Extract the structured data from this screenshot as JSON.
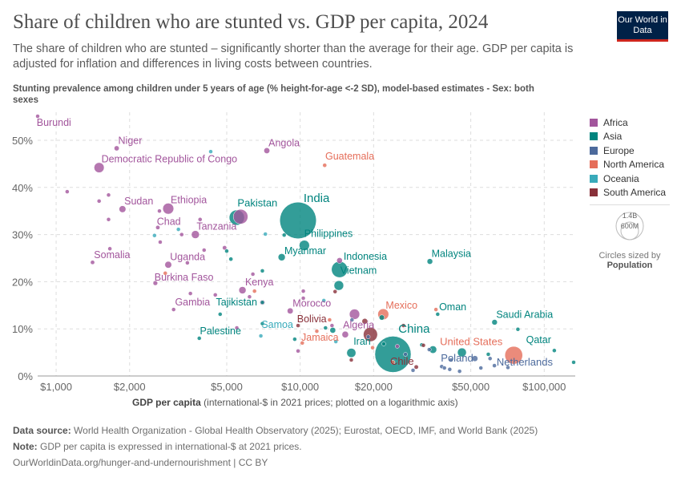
{
  "header": {
    "title": "Share of children who are stunted vs. GDP per capita, 2024",
    "subtitle": "The share of children who are stunted – significantly shorter than the average for their age. GDP per capita is adjusted for inflation and differences in living costs between countries.",
    "logo": "Our World in Data"
  },
  "footer": {
    "source_label": "Data source:",
    "source": "World Health Organization - Global Health Observatory (2025); Eurostat, OECD, IMF, and World Bank (2025)",
    "note_label": "Note:",
    "note": "GDP per capita is expressed in international-$ at 2021 prices.",
    "link": "OurWorldinData.org/hunger-and-undernourishment | CC BY"
  },
  "size_legend": {
    "big": "1.4B",
    "small": "600M",
    "caption": "Circles sized by",
    "variable": "Population"
  },
  "chart_data": {
    "type": "scatter",
    "ylabel": "Stunting prevalence among children under 5 years of age (% height-for-age <-2 SD), model-based estimates - Sex: both sexes",
    "xlabel_bold": "GDP per capita",
    "xlabel_rest": "(international-$ in 2021 prices; plotted on a logarithmic axis)",
    "x_scale": "log",
    "xlim": [
      840,
      134000
    ],
    "ylim": [
      0,
      55
    ],
    "grid": true,
    "legend": "right",
    "x_ticks": [
      {
        "v": 1000,
        "label": "$1,000"
      },
      {
        "v": 2000,
        "label": "$2,000"
      },
      {
        "v": 5000,
        "label": "$5,000"
      },
      {
        "v": 10000,
        "label": "$10,000"
      },
      {
        "v": 20000,
        "label": "$20,000"
      },
      {
        "v": 50000,
        "label": "$50,000"
      },
      {
        "v": 100000,
        "label": "$100,000"
      }
    ],
    "y_ticks": [
      {
        "v": 0,
        "label": "0%"
      },
      {
        "v": 10,
        "label": "10%"
      },
      {
        "v": 20,
        "label": "20%"
      },
      {
        "v": 30,
        "label": "30%"
      },
      {
        "v": 40,
        "label": "40%"
      },
      {
        "v": 50,
        "label": "50%"
      }
    ],
    "series": [
      {
        "name": "Africa",
        "color": "#a2559c",
        "points": [
          {
            "label": "Burundi",
            "x": 840,
            "y": 55.1,
            "pop": 14
          },
          {
            "label": "Niger",
            "x": 1770,
            "y": 48.3,
            "pop": 27
          },
          {
            "label": "Democratic Republic of Congo",
            "x": 1500,
            "y": 44.2,
            "pop": 110
          },
          {
            "label": "Angola",
            "x": 7300,
            "y": 47.8,
            "pop": 37
          },
          {
            "label": "Sudan",
            "x": 1870,
            "y": 35.4,
            "pop": 50
          },
          {
            "label": "Ethiopia",
            "x": 2880,
            "y": 35.5,
            "pop": 130
          },
          {
            "label": "",
            "x": 5700,
            "y": 33.8,
            "pop": 230
          },
          {
            "label": "Chad",
            "x": 2610,
            "y": 31.5,
            "pop": 19
          },
          {
            "label": "Tanzania",
            "x": 3720,
            "y": 30.0,
            "pop": 68
          },
          {
            "label": "Somalia",
            "x": 1410,
            "y": 24.1,
            "pop": 19
          },
          {
            "label": "Uganda",
            "x": 2880,
            "y": 23.6,
            "pop": 50
          },
          {
            "label": "Burkina Faso",
            "x": 2550,
            "y": 19.7,
            "pop": 23
          },
          {
            "label": "Kenya",
            "x": 5800,
            "y": 18.2,
            "pop": 56
          },
          {
            "label": "Gambia",
            "x": 3030,
            "y": 14.1,
            "pop": 3
          },
          {
            "label": "Morocco",
            "x": 9100,
            "y": 13.8,
            "pop": 38
          },
          {
            "label": "Algeria",
            "x": 15300,
            "y": 8.8,
            "pop": 46
          },
          {
            "label": "",
            "x": 16700,
            "y": 13.1,
            "pop": 115
          },
          {
            "label": "",
            "x": 14500,
            "y": 24.5,
            "pop": 35
          },
          {
            "label": "",
            "x": 1110,
            "y": 39.1,
            "pop": 6
          },
          {
            "label": "",
            "x": 1500,
            "y": 37.1,
            "pop": 12
          },
          {
            "label": "",
            "x": 1640,
            "y": 38.4,
            "pop": 10
          },
          {
            "label": "",
            "x": 1640,
            "y": 33.2,
            "pop": 8
          },
          {
            "label": "",
            "x": 2650,
            "y": 35.0,
            "pop": 6
          },
          {
            "label": "",
            "x": 3890,
            "y": 33.2,
            "pop": 8
          },
          {
            "label": "",
            "x": 3270,
            "y": 30.0,
            "pop": 8
          },
          {
            "label": "",
            "x": 2670,
            "y": 28.4,
            "pop": 8
          },
          {
            "label": "",
            "x": 4040,
            "y": 26.7,
            "pop": 8
          },
          {
            "label": "",
            "x": 4900,
            "y": 27.2,
            "pop": 20
          },
          {
            "label": "",
            "x": 1660,
            "y": 27.0,
            "pop": 6
          },
          {
            "label": "",
            "x": 3450,
            "y": 24.0,
            "pop": 8
          },
          {
            "label": "",
            "x": 3550,
            "y": 17.5,
            "pop": 10
          },
          {
            "label": "",
            "x": 4490,
            "y": 17.2,
            "pop": 10
          },
          {
            "label": "",
            "x": 6400,
            "y": 21.6,
            "pop": 12
          },
          {
            "label": "",
            "x": 6200,
            "y": 16.8,
            "pop": 12
          },
          {
            "label": "",
            "x": 7000,
            "y": 15.6,
            "pop": 28
          },
          {
            "label": "",
            "x": 10300,
            "y": 18.0,
            "pop": 4
          },
          {
            "label": "",
            "x": 10300,
            "y": 16.5,
            "pop": 6
          },
          {
            "label": "",
            "x": 5500,
            "y": 10.2,
            "pop": 3
          },
          {
            "label": "",
            "x": 9800,
            "y": 5.3,
            "pop": 10
          },
          {
            "label": "",
            "x": 13500,
            "y": 10.7,
            "pop": 12
          },
          {
            "label": "",
            "x": 25000,
            "y": 6.3,
            "pop": 6
          }
        ]
      },
      {
        "name": "Asia",
        "color": "#00847e",
        "points": [
          {
            "label": "Pakistan",
            "x": 5500,
            "y": 33.6,
            "pop": 250
          },
          {
            "label": "India",
            "x": 9800,
            "y": 33.0,
            "pop": 1440
          },
          {
            "label": "Philippines",
            "x": 10400,
            "y": 27.7,
            "pop": 115
          },
          {
            "label": "Myanmar",
            "x": 8400,
            "y": 25.2,
            "pop": 55
          },
          {
            "label": "Indonesia",
            "x": 14500,
            "y": 22.6,
            "pop": 280
          },
          {
            "label": "Vietnam",
            "x": 14400,
            "y": 19.2,
            "pop": 100
          },
          {
            "label": "Malaysia",
            "x": 34000,
            "y": 24.3,
            "pop": 34
          },
          {
            "label": "Tajikistan",
            "x": 4700,
            "y": 13.1,
            "pop": 10
          },
          {
            "label": "Palestine",
            "x": 3860,
            "y": 8.0,
            "pop": 5
          },
          {
            "label": "Oman",
            "x": 36600,
            "y": 13.1,
            "pop": 5
          },
          {
            "label": "Saudi Arabia",
            "x": 62600,
            "y": 11.4,
            "pop": 33
          },
          {
            "label": "Iran",
            "x": 16200,
            "y": 4.9,
            "pop": 90
          },
          {
            "label": "China",
            "x": 24000,
            "y": 4.6,
            "pop": 1410
          },
          {
            "label": "Qatar",
            "x": 110000,
            "y": 5.4,
            "pop": 3
          },
          {
            "label": "",
            "x": 5000,
            "y": 26.5,
            "pop": 8
          },
          {
            "label": "",
            "x": 5200,
            "y": 24.8,
            "pop": 18
          },
          {
            "label": "",
            "x": 7000,
            "y": 22.3,
            "pop": 8
          },
          {
            "label": "",
            "x": 7000,
            "y": 15.6,
            "pop": 8
          },
          {
            "label": "",
            "x": 7000,
            "y": 11.1,
            "pop": 7
          },
          {
            "label": "",
            "x": 9500,
            "y": 7.8,
            "pop": 7
          },
          {
            "label": "",
            "x": 12700,
            "y": 10.2,
            "pop": 10
          },
          {
            "label": "",
            "x": 13600,
            "y": 9.7,
            "pop": 36
          },
          {
            "label": "",
            "x": 8600,
            "y": 29.9,
            "pop": 5
          },
          {
            "label": "",
            "x": 21600,
            "y": 12.4,
            "pop": 30
          },
          {
            "label": "",
            "x": 22000,
            "y": 6.8,
            "pop": 5
          },
          {
            "label": "",
            "x": 31500,
            "y": 6.6,
            "pop": 5
          },
          {
            "label": "",
            "x": 35000,
            "y": 5.6,
            "pop": 60
          },
          {
            "label": "",
            "x": 46000,
            "y": 5.0,
            "pop": 85
          },
          {
            "label": "",
            "x": 59000,
            "y": 4.6,
            "pop": 5
          },
          {
            "label": "",
            "x": 78000,
            "y": 9.9,
            "pop": 4
          },
          {
            "label": "",
            "x": 132000,
            "y": 2.9,
            "pop": 6
          }
        ]
      },
      {
        "name": "Europe",
        "color": "#4c6a9c",
        "points": [
          {
            "label": "Poland",
            "x": 52000,
            "y": 3.7,
            "pop": 37
          },
          {
            "label": "Netherlands",
            "x": 62500,
            "y": 2.2,
            "pop": 18
          },
          {
            "label": "",
            "x": 16300,
            "y": 11.9,
            "pop": 5
          },
          {
            "label": "",
            "x": 19000,
            "y": 8.3,
            "pop": 4
          },
          {
            "label": "",
            "x": 27000,
            "y": 4.6,
            "pop": 4
          },
          {
            "label": "",
            "x": 33800,
            "y": 5.6,
            "pop": 4
          },
          {
            "label": "",
            "x": 38000,
            "y": 2.0,
            "pop": 4
          },
          {
            "label": "",
            "x": 39000,
            "y": 1.7,
            "pop": 4
          },
          {
            "label": "",
            "x": 41000,
            "y": 1.4,
            "pop": 4
          },
          {
            "label": "",
            "x": 41500,
            "y": 3.4,
            "pop": 4
          },
          {
            "label": "",
            "x": 45000,
            "y": 1.0,
            "pop": 10
          },
          {
            "label": "",
            "x": 55000,
            "y": 1.7,
            "pop": 4
          },
          {
            "label": "",
            "x": 60000,
            "y": 3.7,
            "pop": 6
          },
          {
            "label": "",
            "x": 71000,
            "y": 1.8,
            "pop": 5
          },
          {
            "label": "",
            "x": 29000,
            "y": 1.2,
            "pop": 4
          }
        ]
      },
      {
        "name": "North America",
        "color": "#e56e5a",
        "points": [
          {
            "label": "Guatemala",
            "x": 12600,
            "y": 44.7,
            "pop": 18
          },
          {
            "label": "Mexico",
            "x": 21900,
            "y": 13.1,
            "pop": 130
          },
          {
            "label": "Jamaica",
            "x": 10200,
            "y": 7.0,
            "pop": 3
          },
          {
            "label": "United States",
            "x": 75000,
            "y": 4.4,
            "pop": 340
          },
          {
            "label": "",
            "x": 2800,
            "y": 21.8,
            "pop": 4
          },
          {
            "label": "",
            "x": 6500,
            "y": 18.0,
            "pop": 4
          },
          {
            "label": "",
            "x": 13200,
            "y": 11.9,
            "pop": 4
          },
          {
            "label": "",
            "x": 11700,
            "y": 9.5,
            "pop": 5
          },
          {
            "label": "",
            "x": 19800,
            "y": 6.0,
            "pop": 3
          },
          {
            "label": "",
            "x": 24000,
            "y": 2.9,
            "pop": 3
          },
          {
            "label": "",
            "x": 36000,
            "y": 14.1,
            "pop": 1
          }
        ]
      },
      {
        "name": "Oceania",
        "color": "#38aaba",
        "points": [
          {
            "label": "Samoa",
            "x": 6900,
            "y": 8.5,
            "pop": 1
          },
          {
            "label": "",
            "x": 4300,
            "y": 47.6,
            "pop": 2
          },
          {
            "label": "",
            "x": 3170,
            "y": 31.1,
            "pop": 2
          },
          {
            "label": "",
            "x": 2530,
            "y": 29.8,
            "pop": 2
          },
          {
            "label": "",
            "x": 7200,
            "y": 30.1,
            "pop": 2
          },
          {
            "label": "",
            "x": 12500,
            "y": 16.0,
            "pop": 2
          },
          {
            "label": "",
            "x": 14000,
            "y": 7.3,
            "pop": 2
          }
        ]
      },
      {
        "name": "South America",
        "color": "#883039",
        "points": [
          {
            "label": "Bolivia",
            "x": 9800,
            "y": 10.7,
            "pop": 12
          },
          {
            "label": "Chile",
            "x": 29900,
            "y": 1.9,
            "pop": 20
          },
          {
            "label": "",
            "x": 13900,
            "y": 17.9,
            "pop": 5
          },
          {
            "label": "",
            "x": 18400,
            "y": 11.6,
            "pop": 35
          },
          {
            "label": "",
            "x": 19400,
            "y": 8.8,
            "pop": 215
          },
          {
            "label": "",
            "x": 26500,
            "y": 10.7,
            "pop": 7
          },
          {
            "label": "",
            "x": 32000,
            "y": 6.5,
            "pop": 4
          },
          {
            "label": "",
            "x": 16200,
            "y": 3.4,
            "pop": 4
          }
        ]
      }
    ]
  }
}
